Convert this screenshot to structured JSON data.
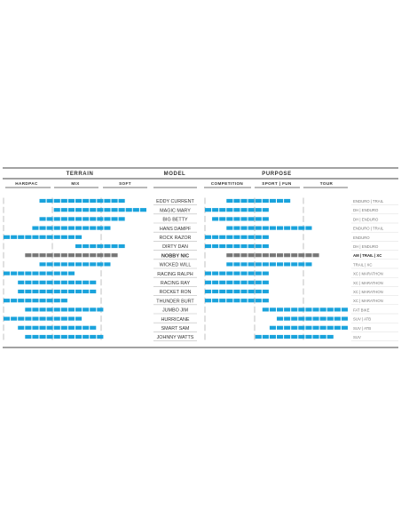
{
  "colors": {
    "accent": "#1aa3dc",
    "highlight": "#777777",
    "rule": "#444444",
    "muted": "#888888"
  },
  "headers": {
    "terrain": "TERRAIN",
    "model": "MODEL",
    "purpose": "PURPOSE"
  },
  "subheaders": {
    "terrain": [
      "HARDPAC",
      "MIX",
      "SOFT"
    ],
    "purpose": [
      "COMPETITION",
      "SPORT | FUN",
      "TOUR"
    ]
  },
  "chart_data": {
    "type": "table",
    "scale_note": "segment bars, 0–20 positions per section",
    "rows": [
      {
        "model": "EDDY CURRENT",
        "terrain": [
          5,
          17
        ],
        "purpose": [
          3,
          12
        ],
        "category": "ENDURO | TRAIL",
        "highlight": false
      },
      {
        "model": "MAGIC MARY",
        "terrain": [
          7,
          20
        ],
        "purpose": [
          0,
          9
        ],
        "category": "DH | ENDURO",
        "highlight": false
      },
      {
        "model": "BIG BETTY",
        "terrain": [
          5,
          17
        ],
        "purpose": [
          1,
          9
        ],
        "category": "DH | ENDURO",
        "highlight": false
      },
      {
        "model": "HANS DAMPF",
        "terrain": [
          4,
          15
        ],
        "purpose": [
          3,
          15
        ],
        "category": "ENDURO | TRAIL",
        "highlight": false
      },
      {
        "model": "ROCK RAZOR",
        "terrain": [
          0,
          11
        ],
        "purpose": [
          0,
          9
        ],
        "category": "ENDURO",
        "highlight": false
      },
      {
        "model": "DIRTY DAN",
        "terrain": [
          10,
          17
        ],
        "purpose": [
          0,
          9
        ],
        "category": "DH | ENDURO",
        "highlight": false
      },
      {
        "model": "NOBBY NIC",
        "terrain": [
          3,
          16
        ],
        "purpose": [
          3,
          16
        ],
        "category": "AM | TRAIL | XC",
        "highlight": true
      },
      {
        "model": "WICKED WILL",
        "terrain": [
          5,
          15
        ],
        "purpose": [
          3,
          15
        ],
        "category": "TRAIL | XC",
        "highlight": false
      },
      {
        "model": "RACING RALPH",
        "terrain": [
          0,
          10
        ],
        "purpose": [
          0,
          9
        ],
        "category": "XC | MARATHON",
        "highlight": false
      },
      {
        "model": "RACING RAY",
        "terrain": [
          2,
          13
        ],
        "purpose": [
          0,
          9
        ],
        "category": "XC | MARATHON",
        "highlight": false
      },
      {
        "model": "ROCKET RON",
        "terrain": [
          2,
          13
        ],
        "purpose": [
          0,
          9
        ],
        "category": "XC | MARATHON",
        "highlight": false
      },
      {
        "model": "THUNDER BURT",
        "terrain": [
          0,
          9
        ],
        "purpose": [
          0,
          9
        ],
        "category": "XC | MARATHON",
        "highlight": false
      },
      {
        "model": "JUMBO JIM",
        "terrain": [
          3,
          14
        ],
        "purpose": [
          8,
          20
        ],
        "category": "FAT BIKE",
        "highlight": false
      },
      {
        "model": "HURRICANE",
        "terrain": [
          0,
          11
        ],
        "purpose": [
          10,
          20
        ],
        "category": "SUV | ATB",
        "highlight": false
      },
      {
        "model": "SMART SAM",
        "terrain": [
          2,
          13
        ],
        "purpose": [
          9,
          20
        ],
        "category": "SUV | ATB",
        "highlight": false
      },
      {
        "model": "JOHNNY WATTS",
        "terrain": [
          3,
          14
        ],
        "purpose": [
          7,
          18
        ],
        "category": "SUV",
        "highlight": false
      }
    ]
  }
}
